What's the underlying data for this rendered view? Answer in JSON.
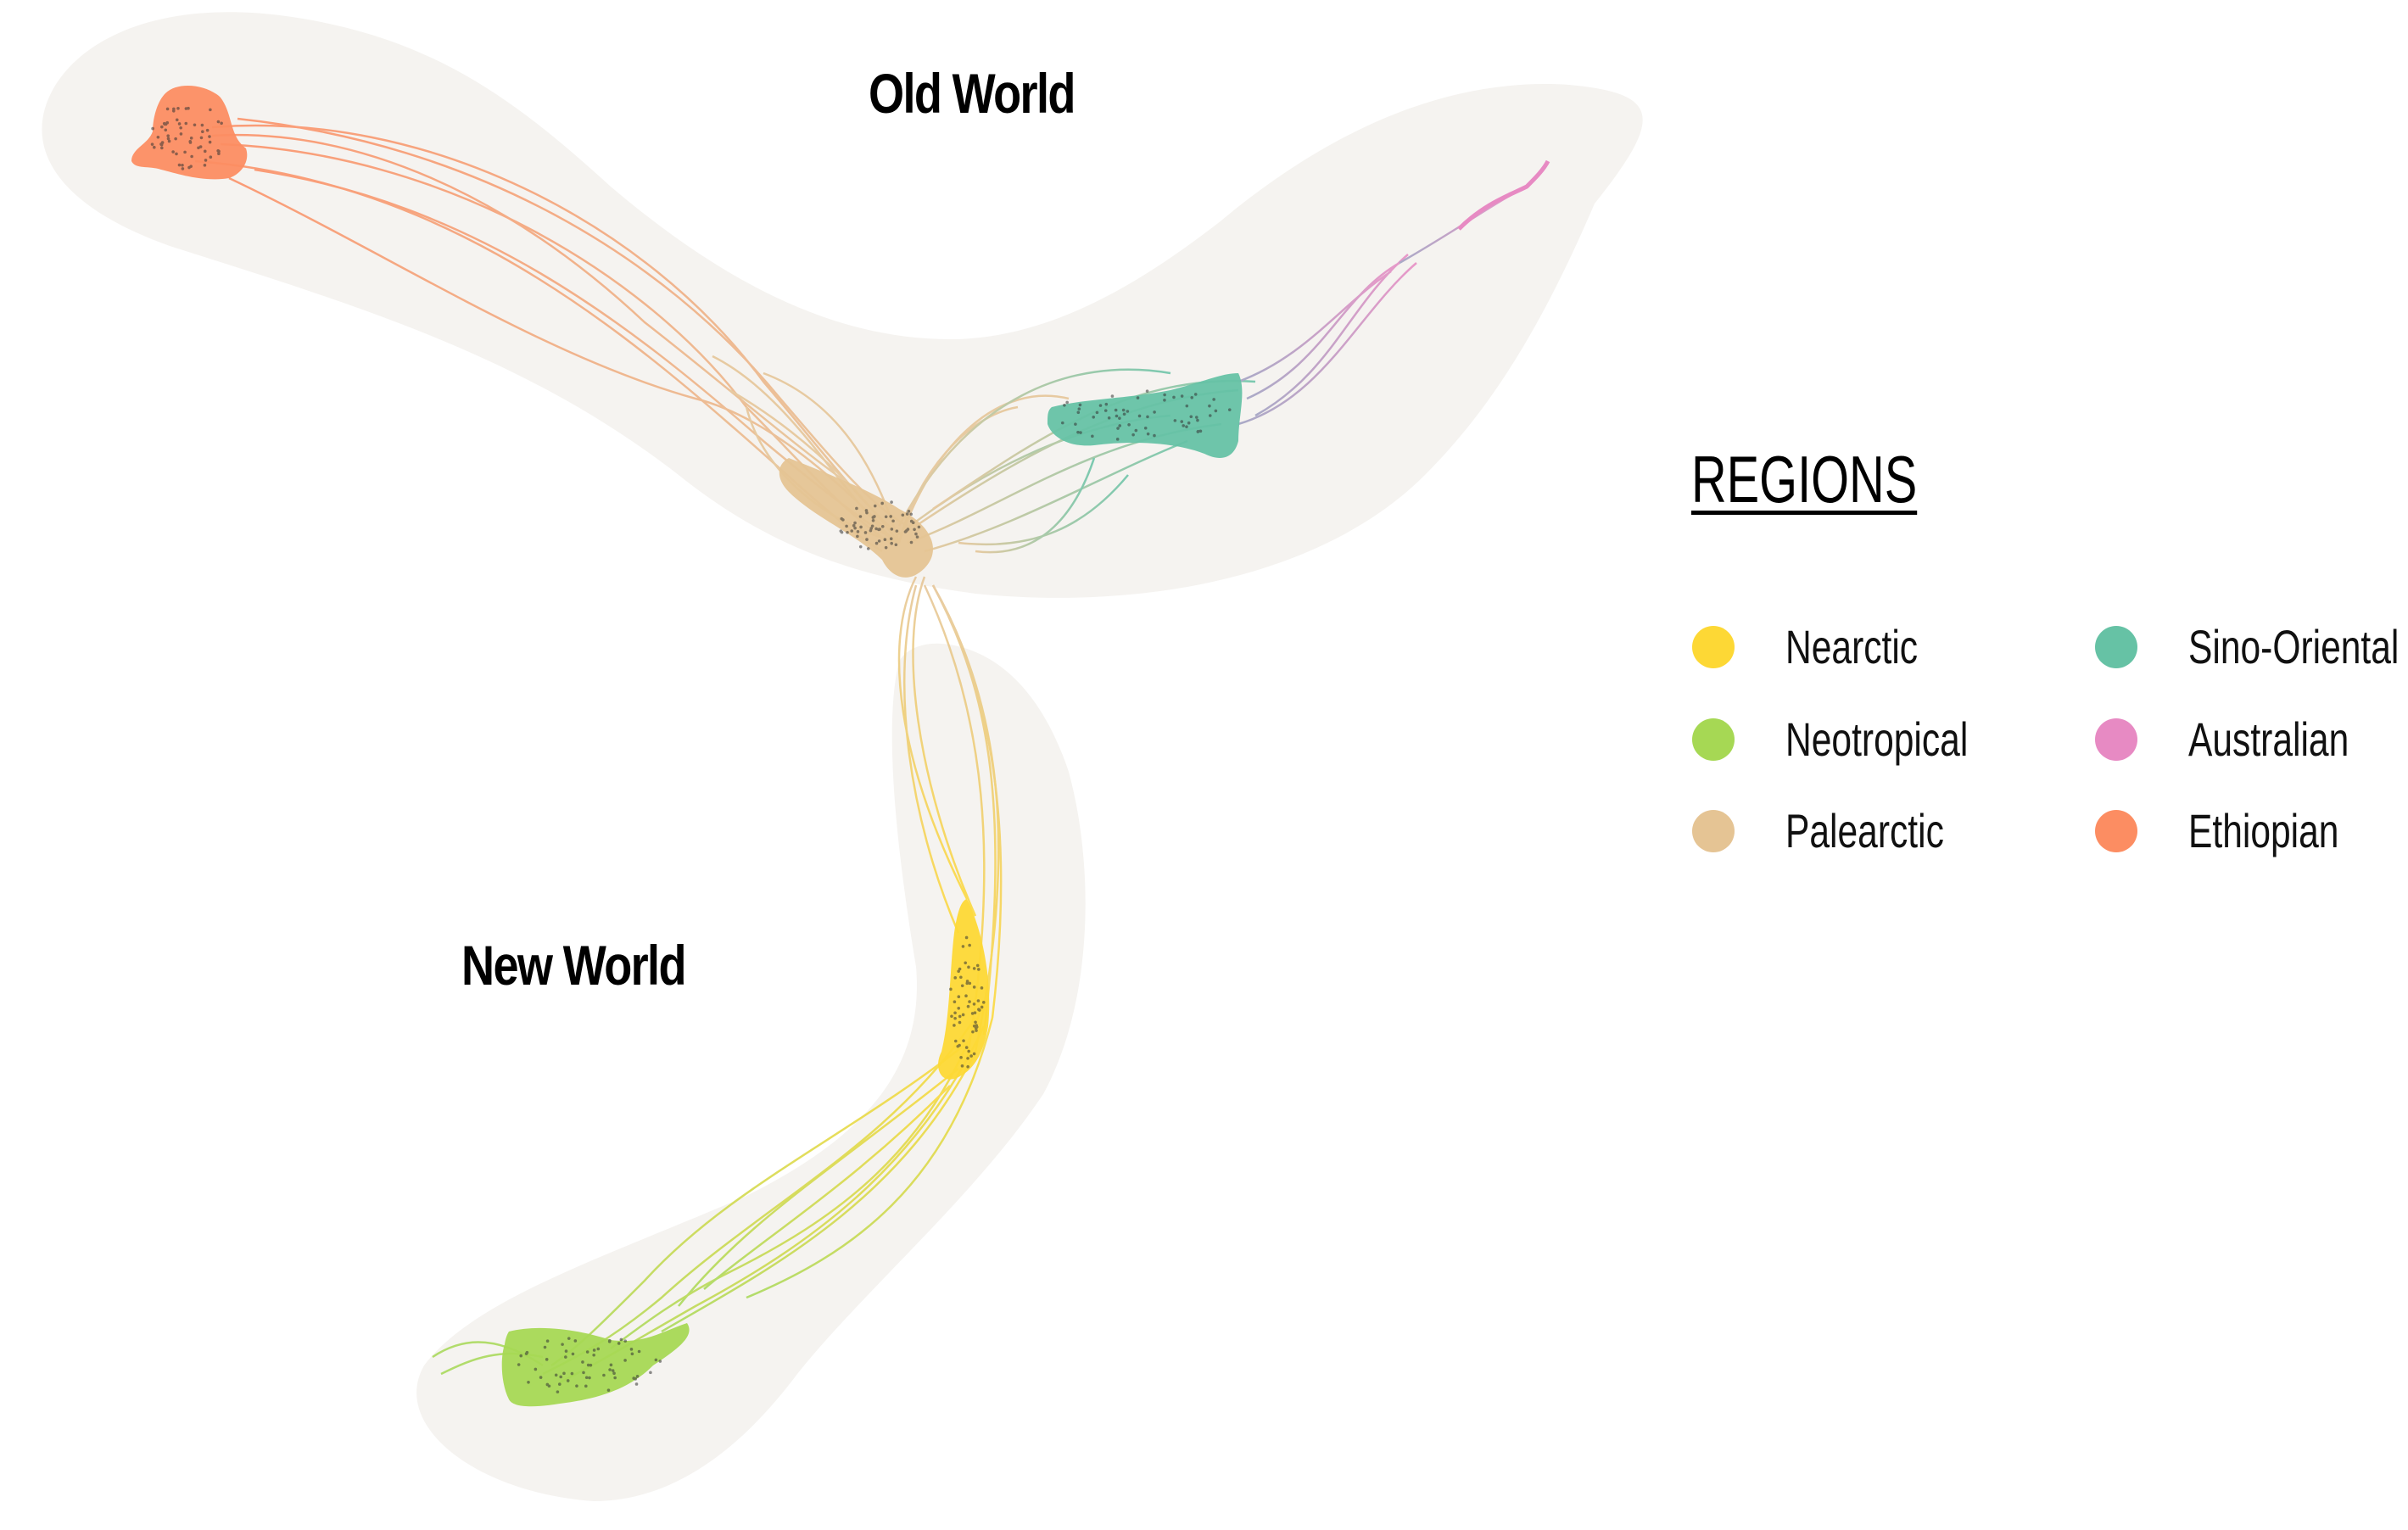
{
  "labels": {
    "old_world": "Old World",
    "new_world": "New World"
  },
  "legend": {
    "title": "REGIONS",
    "items": [
      {
        "label": "Nearctic",
        "color": "#FDD835"
      },
      {
        "label": "Neotropical",
        "color": "#A6D854"
      },
      {
        "label": "Palearctic",
        "color": "#E5C494"
      },
      {
        "label": "Sino-Oriental",
        "color": "#66C2A5"
      },
      {
        "label": "Australian",
        "color": "#E78AC3"
      },
      {
        "label": "Ethiopian",
        "color": "#FC8D62"
      }
    ]
  },
  "hull_color": "#F5F3F0"
}
